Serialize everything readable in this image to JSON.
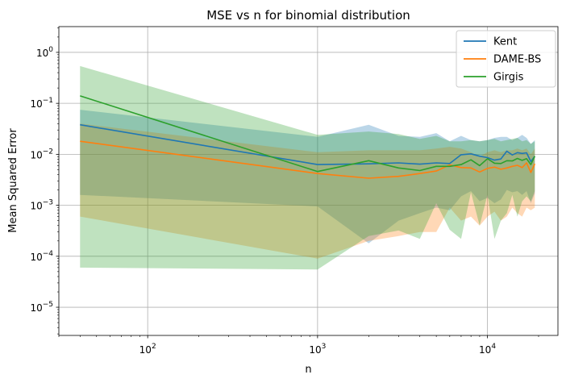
{
  "chart_data": {
    "type": "line",
    "title": "MSE vs n for binomial distribution",
    "xlabel": "n",
    "ylabel": "Mean Squared Error",
    "xscale": "log",
    "yscale": "log",
    "xlim": [
      30,
      26000
    ],
    "ylim": [
      2.8e-06,
      3.2
    ],
    "grid": true,
    "legend_position": "top-right",
    "x_ticks": [
      {
        "value": 100,
        "base": "10",
        "exp": "2"
      },
      {
        "value": 1000,
        "base": "10",
        "exp": "3"
      },
      {
        "value": 10000,
        "base": "10",
        "exp": "4"
      }
    ],
    "y_ticks": [
      {
        "value": 1e-05,
        "base": "10",
        "exp": "−5"
      },
      {
        "value": 0.0001,
        "base": "10",
        "exp": "−4"
      },
      {
        "value": 0.001,
        "base": "10",
        "exp": "−3"
      },
      {
        "value": 0.01,
        "base": "10",
        "exp": "−2"
      },
      {
        "value": 0.1,
        "base": "10",
        "exp": "−1"
      },
      {
        "value": 1,
        "base": "10",
        "exp": "0"
      }
    ],
    "series": [
      {
        "name": "Kent",
        "color": "#1f77b4",
        "band_opacity": 0.3,
        "points": [
          [
            40,
            0.038,
            0.0016,
            0.075
          ],
          [
            1000,
            0.0063,
            0.00095,
            0.022
          ],
          [
            2000,
            0.0065,
            0.00018,
            0.038
          ],
          [
            3000,
            0.0068,
            0.0005,
            0.023
          ],
          [
            4000,
            0.0064,
            0.0007,
            0.022
          ],
          [
            5000,
            0.0068,
            0.0009,
            0.026
          ],
          [
            6000,
            0.0066,
            0.0008,
            0.018
          ],
          [
            7000,
            0.0098,
            0.0015,
            0.023
          ],
          [
            8000,
            0.0102,
            0.0019,
            0.019
          ],
          [
            9000,
            0.0092,
            0.0012,
            0.018
          ],
          [
            10000,
            0.0086,
            0.0014,
            0.019
          ],
          [
            11000,
            0.0077,
            0.0011,
            0.021
          ],
          [
            12000,
            0.0081,
            0.0013,
            0.022
          ],
          [
            13000,
            0.0115,
            0.002,
            0.022
          ],
          [
            14000,
            0.0097,
            0.0018,
            0.019
          ],
          [
            15000,
            0.0108,
            0.0019,
            0.021
          ],
          [
            16000,
            0.0104,
            0.0016,
            0.024
          ],
          [
            17000,
            0.0107,
            0.0019,
            0.021
          ],
          [
            18000,
            0.0072,
            0.0011,
            0.016
          ],
          [
            19000,
            0.0092,
            0.0017,
            0.019
          ]
        ]
      },
      {
        "name": "DAME-BS",
        "color": "#ff7f0e",
        "band_opacity": 0.3,
        "points": [
          [
            40,
            0.018,
            0.0006,
            0.04
          ],
          [
            1000,
            0.0042,
            9e-05,
            0.011
          ],
          [
            2000,
            0.0034,
            0.0002,
            0.012
          ],
          [
            3000,
            0.0037,
            0.00025,
            0.012
          ],
          [
            4000,
            0.0042,
            0.0003,
            0.012
          ],
          [
            5000,
            0.0047,
            0.0003,
            0.013
          ],
          [
            6000,
            0.0062,
            0.0009,
            0.014
          ],
          [
            7000,
            0.0055,
            0.0005,
            0.013
          ],
          [
            8000,
            0.0054,
            0.0006,
            0.011
          ],
          [
            9000,
            0.0045,
            0.0004,
            0.009
          ],
          [
            10000,
            0.0053,
            0.0006,
            0.011
          ],
          [
            11000,
            0.0056,
            0.00075,
            0.012
          ],
          [
            12000,
            0.0051,
            0.0005,
            0.011
          ],
          [
            13000,
            0.0054,
            0.0006,
            0.012
          ],
          [
            14000,
            0.0058,
            0.0009,
            0.012
          ],
          [
            15000,
            0.0061,
            0.0007,
            0.013
          ],
          [
            16000,
            0.0055,
            0.0006,
            0.012
          ],
          [
            17000,
            0.0068,
            0.0009,
            0.013
          ],
          [
            18000,
            0.0044,
            0.0008,
            0.01
          ],
          [
            19000,
            0.0065,
            0.0009,
            0.013
          ]
        ]
      },
      {
        "name": "Girgis",
        "color": "#2ca02c",
        "band_opacity": 0.3,
        "points": [
          [
            40,
            0.14,
            6e-05,
            0.54
          ],
          [
            1000,
            0.0046,
            5.5e-05,
            0.024
          ],
          [
            2000,
            0.0075,
            0.00025,
            0.028
          ],
          [
            3000,
            0.0054,
            0.00032,
            0.025
          ],
          [
            4000,
            0.0048,
            0.00022,
            0.02
          ],
          [
            5000,
            0.0058,
            0.0011,
            0.023
          ],
          [
            6000,
            0.0058,
            0.00033,
            0.018
          ],
          [
            7000,
            0.0063,
            0.00022,
            0.018
          ],
          [
            8000,
            0.0078,
            0.0018,
            0.019
          ],
          [
            9000,
            0.006,
            0.0004,
            0.018
          ],
          [
            10000,
            0.0082,
            0.0016,
            0.019
          ],
          [
            11000,
            0.0067,
            0.00022,
            0.02
          ],
          [
            12000,
            0.0066,
            0.0005,
            0.018
          ],
          [
            13000,
            0.0075,
            0.0007,
            0.019
          ],
          [
            14000,
            0.0074,
            0.0016,
            0.02
          ],
          [
            15000,
            0.0083,
            0.0006,
            0.021
          ],
          [
            16000,
            0.0076,
            0.0012,
            0.018
          ],
          [
            17000,
            0.0082,
            0.0015,
            0.019
          ],
          [
            18000,
            0.0063,
            0.0012,
            0.016
          ],
          [
            19000,
            0.0092,
            0.0019,
            0.018
          ]
        ]
      }
    ]
  }
}
